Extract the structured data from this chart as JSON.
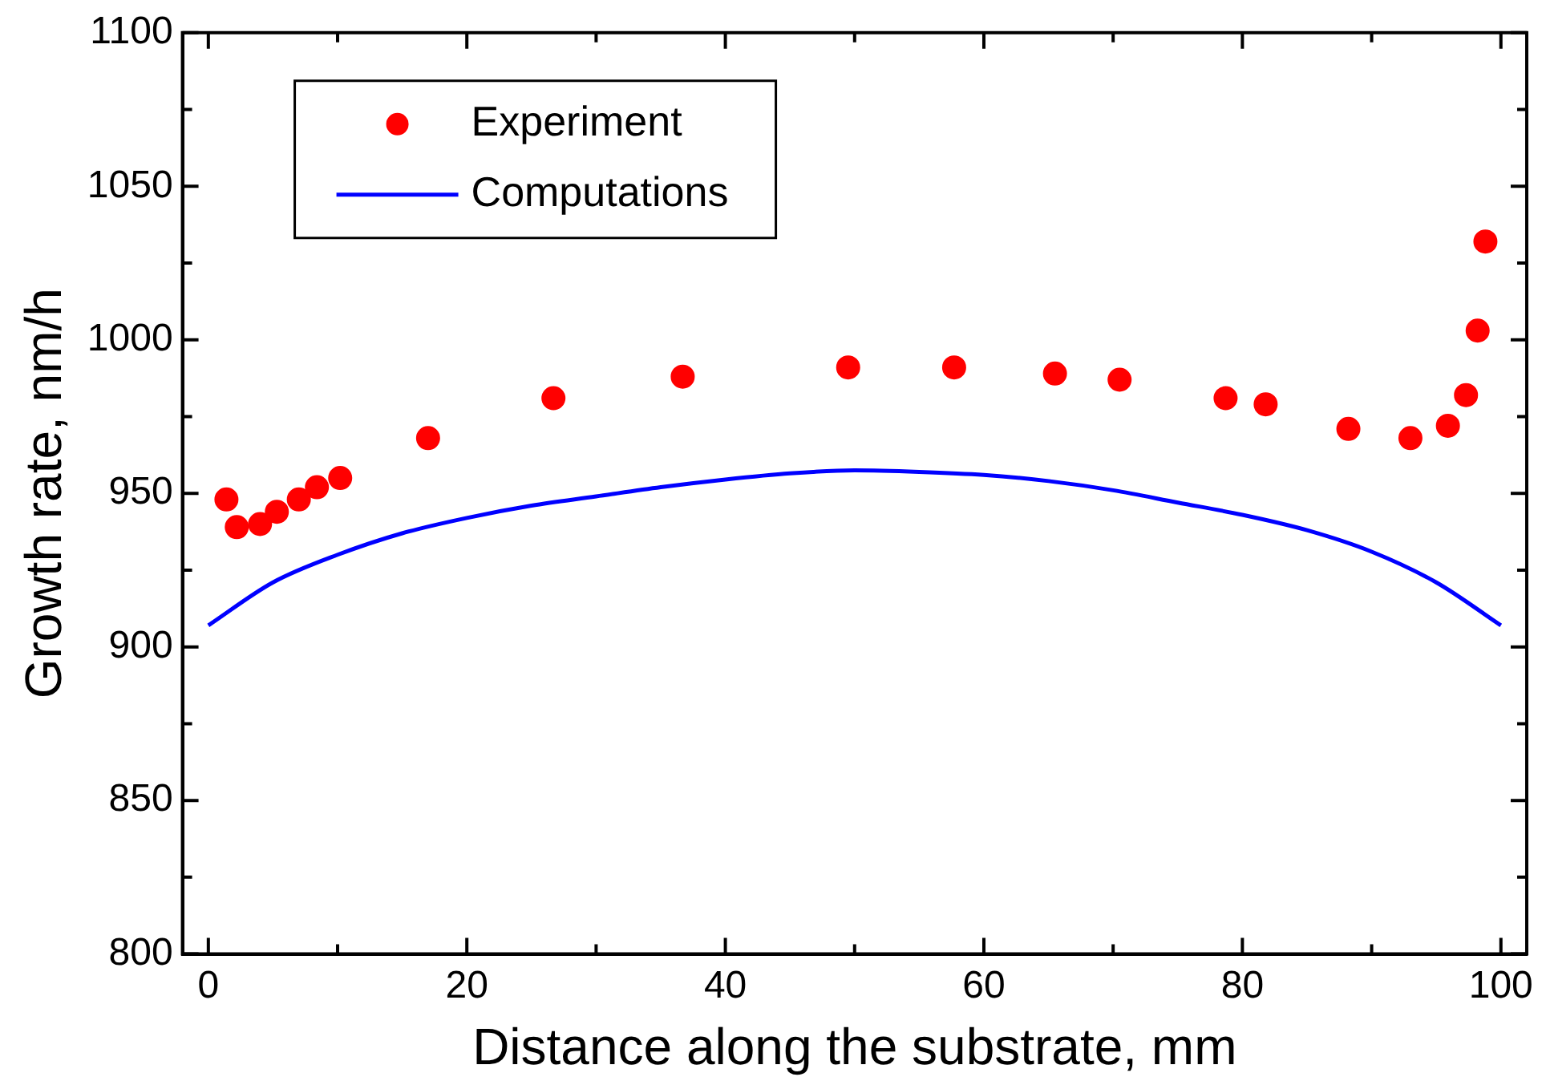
{
  "chart_data": {
    "type": "scatter",
    "xlabel": "Distance along the substrate, mm",
    "ylabel": "Growth rate, nm/h",
    "xlim": [
      -2,
      102
    ],
    "ylim": [
      800,
      1100
    ],
    "xticks": [
      0,
      {
        "value": 10,
        "label": null
      },
      20,
      {
        "value": 30,
        "label": null
      },
      40,
      {
        "value": 50,
        "label": null
      },
      60,
      {
        "value": 70,
        "label": null
      },
      80,
      {
        "value": 90,
        "label": null
      },
      100
    ],
    "yticks": [
      800,
      {
        "value": 825,
        "label": null
      },
      850,
      {
        "value": 875,
        "label": null
      },
      900,
      {
        "value": 925,
        "label": null
      },
      950,
      {
        "value": 975,
        "label": null
      },
      1000,
      {
        "value": 1025,
        "label": null
      },
      1050,
      {
        "value": 1075,
        "label": null
      },
      1100
    ],
    "legend": "top left",
    "grid": false,
    "series": [
      {
        "name": "Experiment",
        "marker": "circle",
        "color": "#ff0000",
        "x": [
          1.4,
          2.2,
          4.0,
          5.3,
          7.0,
          8.4,
          10.2,
          17.0,
          26.7,
          36.7,
          49.5,
          57.7,
          65.5,
          70.5,
          78.7,
          81.8,
          88.2,
          93.0,
          95.9,
          97.3,
          98.2,
          98.8
        ],
        "values": [
          948,
          939,
          940,
          944,
          948,
          952,
          955,
          968,
          981,
          988,
          991,
          991,
          989,
          987,
          981,
          979,
          971,
          968,
          972,
          982,
          1003,
          1032
        ]
      },
      {
        "name": "Computations",
        "type": "line",
        "marker": "none",
        "line_style": "solid",
        "color": "#0000ff",
        "x": [
          0,
          5,
          10,
          15,
          20,
          25,
          30,
          35,
          40,
          45,
          50,
          55,
          60,
          65,
          70,
          75,
          80,
          85,
          90,
          95,
          100
        ],
        "values": [
          907,
          921,
          930,
          937,
          942,
          946,
          949,
          952,
          954.5,
          956.5,
          957.5,
          957,
          956,
          954,
          951,
          947,
          943,
          938,
          931,
          921,
          907
        ]
      }
    ]
  }
}
